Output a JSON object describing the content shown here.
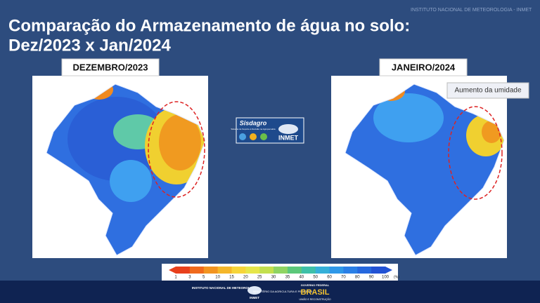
{
  "header": {
    "title_line1": "Comparação do Armazenamento de água no solo:",
    "title_line2": "Dez/2023 x Jan/2024",
    "watermark": "INSTITUTO NACIONAL DE METEOROLOGIA - INMET"
  },
  "maps": [
    {
      "label": "DEZEMBRO/2023"
    },
    {
      "label": "JANEIRO/2024",
      "annotation": "Aumento da umidade"
    }
  ],
  "center_logo": {
    "name": "Sisdagro",
    "subtitle": "Sistema de Suporte à Decisão na Agropecuária",
    "brand": "INMET"
  },
  "legend": {
    "ticks": [
      "1",
      "3",
      "5",
      "10",
      "15",
      "20",
      "25",
      "30",
      "35",
      "40",
      "50",
      "60",
      "70",
      "80",
      "90",
      "100"
    ],
    "unit": "(%)"
  },
  "footer": {
    "inmet": "INSTITUTO NACIONAL DE METEOROLOGIA",
    "inmet_short": "INMET",
    "ministry": "MINISTÉRIO DA AGRICULTURA E PECUÁRIA",
    "gov": "GOVERNO FEDERAL",
    "brasil": "BRASIL",
    "motto": "UNIÃO E RECONSTRUÇÃO"
  }
}
